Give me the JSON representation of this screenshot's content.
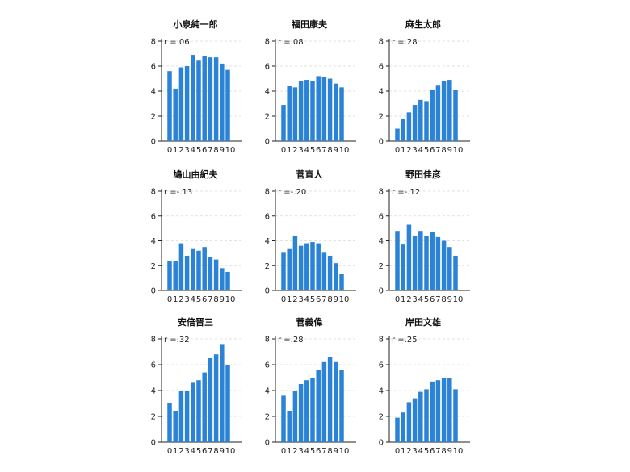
{
  "figure": {
    "bar_color": "#2a83d6",
    "grid": "dashed-horizontal",
    "layout": "3x3"
  },
  "chart_data": [
    {
      "type": "bar",
      "title": "小泉純一郎",
      "annotation": "r =.06",
      "categories": [
        "0",
        "1",
        "2",
        "3",
        "4",
        "5",
        "6",
        "7",
        "8",
        "9",
        "10"
      ],
      "x_tick_labels": [
        "0",
        "1",
        "2",
        "3",
        "4",
        "5",
        "6",
        "7",
        "8",
        "9",
        "10"
      ],
      "values": [
        5.6,
        4.2,
        5.9,
        6.0,
        6.9,
        6.5,
        6.8,
        6.7,
        6.7,
        6.2,
        5.7
      ],
      "ylim": [
        0,
        8
      ],
      "y_ticks": [
        "0",
        "2",
        "4",
        "6",
        "8"
      ]
    },
    {
      "type": "bar",
      "title": "福田康夫",
      "annotation": "r =.08",
      "categories": [
        "0",
        "1",
        "2",
        "3",
        "4",
        "5",
        "6",
        "7",
        "8",
        "9",
        "10"
      ],
      "x_tick_labels": [
        "0",
        "1",
        "2",
        "3",
        "4",
        "5",
        "6",
        "7",
        "8",
        "9",
        "10"
      ],
      "values": [
        2.9,
        4.4,
        4.3,
        4.8,
        4.9,
        4.8,
        5.2,
        5.1,
        5.0,
        4.6,
        4.3
      ],
      "ylim": [
        0,
        8
      ],
      "y_ticks": [
        "0",
        "2",
        "4",
        "6",
        "8"
      ]
    },
    {
      "type": "bar",
      "title": "麻生太郎",
      "annotation": "r =.28",
      "categories": [
        "0",
        "1",
        "2",
        "3",
        "4",
        "5",
        "6",
        "7",
        "8",
        "9",
        "10"
      ],
      "x_tick_labels": [
        "0",
        "1",
        "2",
        "3",
        "4",
        "5",
        "6",
        "7",
        "8",
        "9",
        "10"
      ],
      "values": [
        1.0,
        1.8,
        2.3,
        2.9,
        3.3,
        3.2,
        4.1,
        4.5,
        4.8,
        4.9,
        4.1
      ],
      "ylim": [
        0,
        8
      ],
      "y_ticks": [
        "0",
        "2",
        "4",
        "6",
        "8"
      ]
    },
    {
      "type": "bar",
      "title": "鳩山由紀夫",
      "annotation": "r =-.13",
      "categories": [
        "0",
        "1",
        "2",
        "3",
        "4",
        "5",
        "6",
        "7",
        "8",
        "9",
        "10"
      ],
      "x_tick_labels": [
        "0",
        "1",
        "2",
        "3",
        "4",
        "5",
        "6",
        "7",
        "8",
        "9",
        "10"
      ],
      "values": [
        2.4,
        2.4,
        3.8,
        2.8,
        3.4,
        3.2,
        3.5,
        2.7,
        2.5,
        1.8,
        1.5
      ],
      "ylim": [
        0,
        8
      ],
      "y_ticks": [
        "0",
        "2",
        "4",
        "6",
        "8"
      ]
    },
    {
      "type": "bar",
      "title": "菅直人",
      "annotation": "r =-.20",
      "categories": [
        "0",
        "1",
        "2",
        "3",
        "4",
        "5",
        "6",
        "7",
        "8",
        "9",
        "10"
      ],
      "x_tick_labels": [
        "0",
        "1",
        "2",
        "3",
        "4",
        "5",
        "6",
        "7",
        "8",
        "9",
        "10"
      ],
      "values": [
        3.1,
        3.4,
        4.4,
        3.6,
        3.8,
        3.9,
        3.8,
        3.1,
        2.8,
        2.2,
        1.3
      ],
      "ylim": [
        0,
        8
      ],
      "y_ticks": [
        "0",
        "2",
        "4",
        "6",
        "8"
      ]
    },
    {
      "type": "bar",
      "title": "野田佳彦",
      "annotation": "r =-.12",
      "categories": [
        "0",
        "1",
        "2",
        "3",
        "4",
        "5",
        "6",
        "7",
        "8",
        "9",
        "10"
      ],
      "x_tick_labels": [
        "0",
        "1",
        "2",
        "3",
        "4",
        "5",
        "6",
        "7",
        "8",
        "9",
        "10"
      ],
      "values": [
        4.8,
        3.7,
        5.3,
        4.4,
        4.8,
        4.4,
        4.7,
        4.3,
        4.0,
        3.5,
        2.8
      ],
      "ylim": [
        0,
        8
      ],
      "y_ticks": [
        "0",
        "2",
        "4",
        "6",
        "8"
      ]
    },
    {
      "type": "bar",
      "title": "安倍晋三",
      "annotation": "r =.32",
      "categories": [
        "0",
        "1",
        "2",
        "3",
        "4",
        "5",
        "6",
        "7",
        "8",
        "9",
        "10"
      ],
      "x_tick_labels": [
        "0",
        "1",
        "2",
        "3",
        "4",
        "5",
        "6",
        "7",
        "8",
        "9",
        "10"
      ],
      "values": [
        3.0,
        2.4,
        4.0,
        4.0,
        4.6,
        4.8,
        5.4,
        6.5,
        6.8,
        7.6,
        6.0
      ],
      "ylim": [
        0,
        8
      ],
      "y_ticks": [
        "0",
        "2",
        "4",
        "6",
        "8"
      ]
    },
    {
      "type": "bar",
      "title": "菅義偉",
      "annotation": "r =.28",
      "categories": [
        "0",
        "1",
        "2",
        "3",
        "4",
        "5",
        "6",
        "7",
        "8",
        "9",
        "10"
      ],
      "x_tick_labels": [
        "0",
        "1",
        "2",
        "3",
        "4",
        "5",
        "6",
        "7",
        "8",
        "9",
        "10"
      ],
      "values": [
        3.6,
        2.4,
        4.0,
        4.5,
        4.8,
        5.0,
        5.6,
        6.2,
        6.6,
        6.2,
        5.6
      ],
      "ylim": [
        0,
        8
      ],
      "y_ticks": [
        "0",
        "2",
        "4",
        "6",
        "8"
      ]
    },
    {
      "type": "bar",
      "title": "岸田文雄",
      "annotation": "r =.25",
      "categories": [
        "0",
        "1",
        "2",
        "3",
        "4",
        "5",
        "6",
        "7",
        "8",
        "9",
        "10"
      ],
      "x_tick_labels": [
        "0",
        "1",
        "2",
        "3",
        "4",
        "5",
        "6",
        "7",
        "8",
        "9",
        "10"
      ],
      "values": [
        1.9,
        2.3,
        3.1,
        3.4,
        3.9,
        4.1,
        4.7,
        4.8,
        5.0,
        5.0,
        4.1
      ],
      "ylim": [
        0,
        8
      ],
      "y_ticks": [
        "0",
        "2",
        "4",
        "6",
        "8"
      ]
    }
  ]
}
